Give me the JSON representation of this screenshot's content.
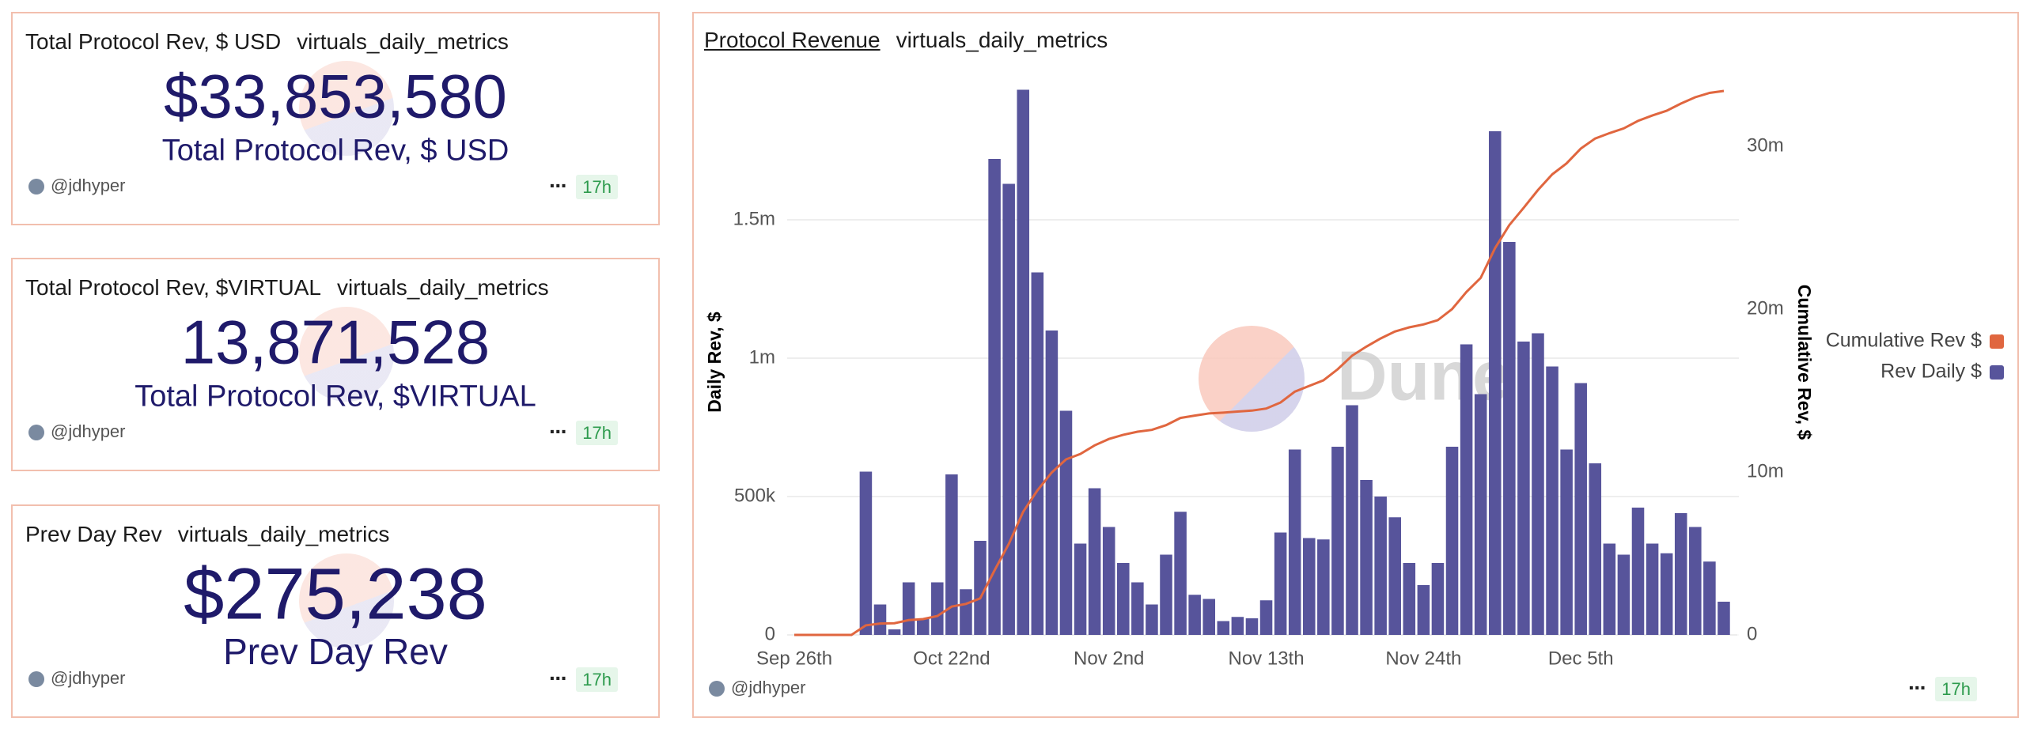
{
  "widgets": [
    {
      "title": "Total Protocol Rev, $ USD",
      "query": "virtuals_daily_metrics",
      "value": "$33,853,580",
      "label": "Total Protocol Rev, $ USD",
      "author": "@jdhyper",
      "age": "17h"
    },
    {
      "title": "Total Protocol Rev, $VIRTUAL",
      "query": "virtuals_daily_metrics",
      "value": "13,871,528",
      "label": "Total Protocol Rev, $VIRTUAL",
      "author": "@jdhyper",
      "age": "17h"
    },
    {
      "title": "Prev Day Rev",
      "query": "virtuals_daily_metrics",
      "value": "$275,238",
      "label": "Prev Day Rev",
      "author": "@jdhyper",
      "age": "17h"
    }
  ],
  "footer": {
    "author": "@jdhyper",
    "age": "17h"
  },
  "chart_data": {
    "type": "combo",
    "title": "Protocol Revenue",
    "subtitle": "virtuals_daily_metrics",
    "ylabel": "Daily Rev, $",
    "y2label": "Cumulative Rev, $",
    "watermark": "Dune",
    "legend": "right",
    "grid": true,
    "categories": [
      "Sep 26th",
      null,
      null,
      null,
      null,
      null,
      null,
      null,
      null,
      null,
      null,
      "Oct 22nd",
      null,
      null,
      null,
      null,
      null,
      null,
      null,
      null,
      null,
      null,
      "Nov 2nd",
      null,
      null,
      null,
      null,
      null,
      null,
      null,
      null,
      null,
      null,
      "Nov 13th",
      null,
      null,
      null,
      null,
      null,
      null,
      null,
      null,
      null,
      null,
      "Nov 24th",
      null,
      null,
      null,
      null,
      null,
      null,
      null,
      null,
      null,
      null,
      "Dec 5th",
      null,
      null,
      null,
      null,
      null,
      null,
      null,
      null,
      null,
      null
    ],
    "ylim": [
      0,
      2000000
    ],
    "yticks": [
      0,
      {
        "value": 500000,
        "label": "500k"
      },
      {
        "value": 1000000,
        "label": "1m"
      },
      {
        "value": 1500000,
        "label": "1.5m"
      }
    ],
    "y2lim": [
      0,
      34000000
    ],
    "y2ticks": [
      0,
      {
        "value": 10000000,
        "label": "10m"
      },
      {
        "value": 20000000,
        "label": "20m"
      },
      {
        "value": 30000000,
        "label": "30m"
      }
    ],
    "series": [
      {
        "name": "Cumulative Rev $",
        "type": "line",
        "axis": "y2",
        "color": "#e0663f",
        "values": [
          0,
          0,
          0,
          0,
          0,
          590000,
          700000,
          720000,
          910000,
          970000,
          1160000,
          1740000,
          1905000,
          2245000,
          3965000,
          5595000,
          7565000,
          8875000,
          9975000,
          10785000,
          11115000,
          11645000,
          12035000,
          12295000,
          12485000,
          12595000,
          12885000,
          13330000,
          13475000,
          13605000,
          13655000,
          13720000,
          13780000,
          13905000,
          14275000,
          14945000,
          15295000,
          15640000,
          16320000,
          17150000,
          17710000,
          18210000,
          18635000,
          18895000,
          19075000,
          19335000,
          20015000,
          21065000,
          21935000,
          23755000,
          25175000,
          26235000,
          27325000,
          28295000,
          28965000,
          29875000,
          30495000,
          30825000,
          31115000,
          31575000,
          31905000,
          32200000,
          32640000,
          33030000,
          33295000,
          33415000
        ]
      },
      {
        "name": "Rev Daily $",
        "type": "bar",
        "color": "#57549b",
        "values": [
          0,
          0,
          0,
          0,
          0,
          590000,
          110000,
          20000,
          190000,
          60000,
          190000,
          580000,
          165000,
          340000,
          1720000,
          1630000,
          1970000,
          1310000,
          1100000,
          810000,
          330000,
          530000,
          390000,
          260000,
          190000,
          110000,
          290000,
          445000,
          145000,
          130000,
          50000,
          65000,
          60000,
          125000,
          370000,
          670000,
          350000,
          345000,
          680000,
          830000,
          560000,
          500000,
          425000,
          260000,
          180000,
          260000,
          680000,
          1050000,
          870000,
          1820000,
          1420000,
          1060000,
          1090000,
          970000,
          670000,
          910000,
          620000,
          330000,
          290000,
          460000,
          330000,
          295000,
          440000,
          390000,
          265000,
          120000
        ]
      }
    ]
  }
}
